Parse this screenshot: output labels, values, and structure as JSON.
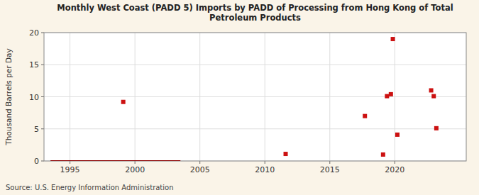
{
  "chart_data": {
    "type": "scatter",
    "title": "Monthly West Coast (PADD 5) Imports by PADD of Processing from Hong Kong of Total\nPetroleum Products",
    "ylabel": "Thousand Barrels per Day",
    "source": "Source: U.S. Energy Information Administration",
    "series": [
      {
        "type": "line",
        "color": "#8b0000",
        "x": [
          1993.5,
          2003.5
        ],
        "values": [
          0.0,
          0.0
        ]
      },
      {
        "type": "scatter",
        "color": "#cc1111",
        "marker": "square",
        "x": [
          1999.1,
          2011.6,
          2017.7,
          2019.1,
          2019.4,
          2019.7,
          2019.85,
          2020.2,
          2022.8,
          2023.0,
          2023.2
        ],
        "values": [
          9.2,
          1.1,
          7.0,
          1.0,
          10.1,
          10.4,
          19.0,
          4.1,
          11.0,
          10.1,
          5.1
        ]
      }
    ],
    "xlim": [
      1993.0,
      2025.5
    ],
    "ylim": [
      0,
      20
    ],
    "xticks": [
      1995,
      2000,
      2005,
      2010,
      2015,
      2020
    ],
    "yticks": [
      0,
      5,
      10,
      15,
      20
    ],
    "grid": true
  }
}
